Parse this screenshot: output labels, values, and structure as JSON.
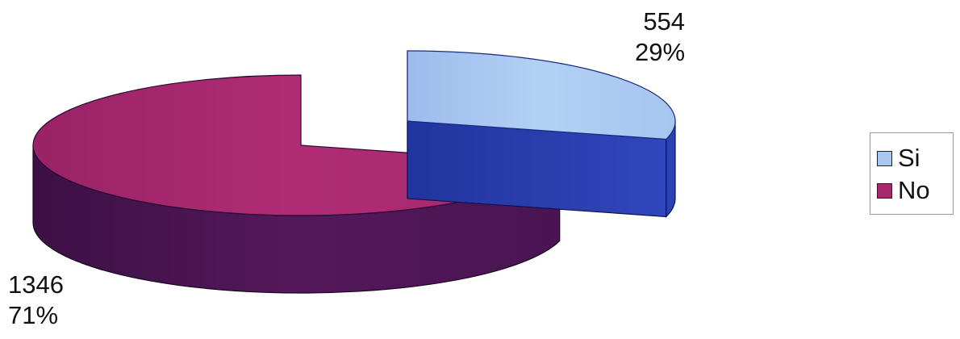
{
  "chart_data": {
    "type": "pie",
    "style": "3d-exploded",
    "title": "",
    "legend_position": "right",
    "categories": [
      "Si",
      "No"
    ],
    "values": [
      554,
      1346
    ],
    "percentages": [
      "29%",
      "71%"
    ],
    "value_labels": [
      "554",
      "1346"
    ],
    "colors": {
      "Si": {
        "top": "#a9c8f0",
        "side": "#2b3fb0"
      },
      "No": {
        "top": "#a8286e",
        "side": "#4a1450"
      }
    }
  }
}
